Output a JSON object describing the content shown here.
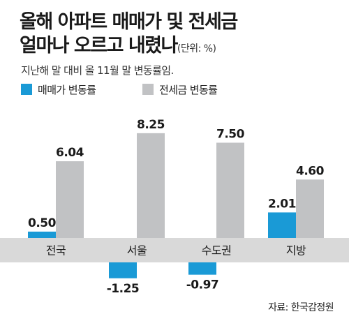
{
  "header": {
    "title_line1": "올해 아파트 매매가 및 전세금",
    "title_line2": "얼마나 오르고 내렸나",
    "unit": "(단위: %)",
    "subtitle": "지난해 말 대비 올 11월 말 변동률임."
  },
  "colors": {
    "sales": "#1a9ad6",
    "jeonse": "#c1c2c4",
    "category_band": "#d9d9d9"
  },
  "chart_data": {
    "type": "bar",
    "categories": [
      "전국",
      "서울",
      "수도권",
      "지방"
    ],
    "series": [
      {
        "name": "매매가 변동률",
        "values": [
          0.5,
          -1.25,
          -0.97,
          2.01
        ],
        "labels": [
          "0.50",
          "-1.25",
          "-0.97",
          "2.01"
        ]
      },
      {
        "name": "전세금 변동률",
        "values": [
          6.04,
          8.25,
          7.5,
          4.6
        ],
        "labels": [
          "6.04",
          "8.25",
          "7.50",
          "4.60"
        ]
      }
    ],
    "title": "올해 아파트 매매가 및 전세금 얼마나 오르고 내렸나",
    "xlabel": "",
    "ylabel": "",
    "legend": "top-left",
    "grid": false
  },
  "source": "자료: 한국감정원"
}
